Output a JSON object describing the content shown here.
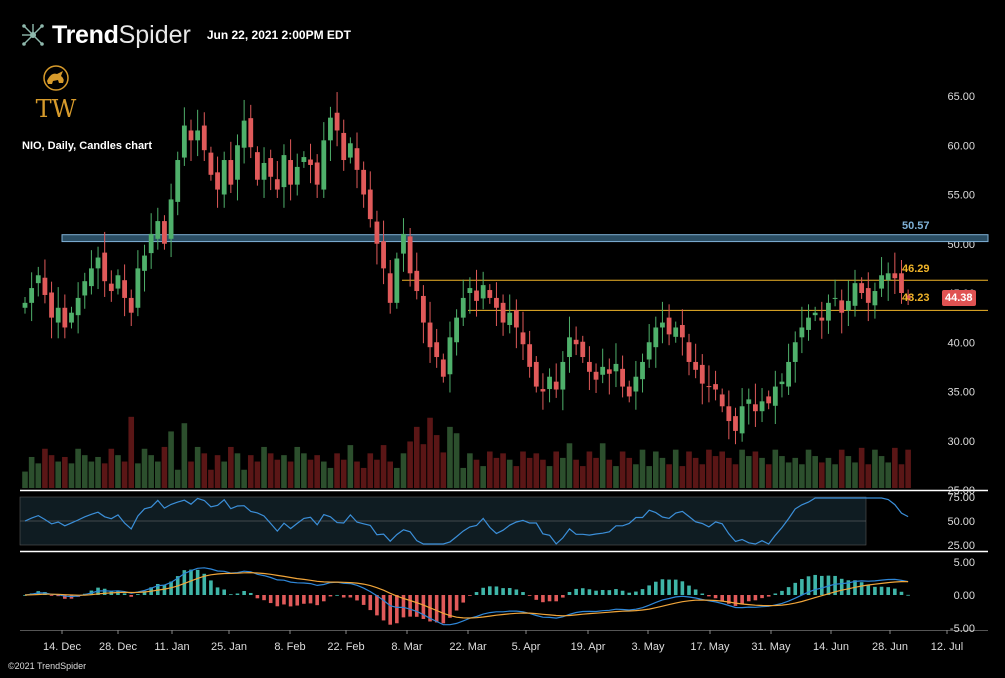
{
  "header": {
    "brand_bold": "Trend",
    "brand_light": "Spider",
    "datetime": "Jun 22, 2021 2:00PM EDT",
    "logo_text": "TW"
  },
  "symbol_label": "NIO, Daily, Candles chart",
  "copyright": "©2021 TrendSpider",
  "levels": {
    "resistance_zone": "50.57",
    "upper_line": "46.29",
    "lower_line": "43.23",
    "last_price": "44.38"
  },
  "colors": {
    "up": "#4fb06b",
    "down": "#e05a5a",
    "up_volume": "#2c4f2d",
    "down_volume": "#5a1616",
    "zone": "#7fb1d6",
    "level_line": "#f0b429",
    "rsi_line": "#3b8fd9",
    "macd_line": "#2f87d8",
    "signal_line": "#f0a53a",
    "background": "#000000"
  },
  "chart_data": [
    {
      "type": "candlestick",
      "title": "",
      "y_ticks": [
        "65.00",
        "60.00",
        "55.00",
        "50.00",
        "45.00",
        "40.00",
        "35.00",
        "30.00",
        "25.00"
      ],
      "ylim": [
        25,
        68
      ],
      "x_ticks": [
        "14. Dec",
        "28. Dec",
        "11. Jan",
        "25. Jan",
        "8. Feb",
        "22. Feb",
        "8. Mar",
        "22. Mar",
        "5. Apr",
        "19. Apr",
        "3. May",
        "17. May",
        "31. May",
        "14. Jun",
        "28. Jun",
        "12. Jul"
      ],
      "horizontal_levels": [
        50.57,
        46.29,
        43.23
      ],
      "last_price": 44.38,
      "closes": [
        44.0,
        45.5,
        46.8,
        44.8,
        42.5,
        43.5,
        41.5,
        43.0,
        44.5,
        46.2,
        47.5,
        48.6,
        46.2,
        45.2,
        46.8,
        44.5,
        43.0,
        47.5,
        48.8,
        51.0,
        52.3,
        50.0,
        54.5,
        58.5,
        62.0,
        60.5,
        61.5,
        59.5,
        57.0,
        55.5,
        58.5,
        56.0,
        60.0,
        62.5,
        59.8,
        56.5,
        58.2,
        56.8,
        55.5,
        59.0,
        56.0,
        57.8,
        58.8,
        58.0,
        56.0,
        60.5,
        62.8,
        61.5,
        58.5,
        60.2,
        57.5,
        55.0,
        52.5,
        50.0,
        47.5,
        44.0,
        48.5,
        51.0,
        47.0,
        45.2,
        42.0,
        39.5,
        38.5,
        36.5,
        40.5,
        42.5,
        44.5,
        45.5,
        44.2,
        45.8,
        44.5,
        43.5,
        42.0,
        43.0,
        41.5,
        39.8,
        37.5,
        35.5,
        35.0,
        36.5,
        35.2,
        38.0,
        40.5,
        39.8,
        38.5,
        37.0,
        36.2,
        37.5,
        36.8,
        37.8,
        35.5,
        34.5,
        36.5,
        38.0,
        40.0,
        41.5,
        42.0,
        40.8,
        41.5,
        40.5,
        38.0,
        37.2,
        35.8,
        35.5,
        35.2,
        33.5,
        32.0,
        31.0,
        33.5,
        34.2,
        33.0,
        34.0,
        33.8,
        35.5,
        36.0,
        38.0,
        40.0,
        41.5,
        42.5,
        43.0,
        42.2,
        44.0,
        44.5,
        43.0,
        44.2,
        46.0,
        45.0,
        44.0,
        45.2,
        46.8,
        47.0,
        46.5,
        45.0,
        44.38
      ],
      "volume_range": [
        0,
        80
      ],
      "rsi": {
        "levels": [
          "75.00",
          "50.00",
          "25.00"
        ],
        "ylim": [
          25,
          75
        ]
      },
      "macd": {
        "levels": [
          "5.00",
          "0.00",
          "-5.00"
        ],
        "ylim": [
          -5,
          5
        ]
      }
    }
  ]
}
